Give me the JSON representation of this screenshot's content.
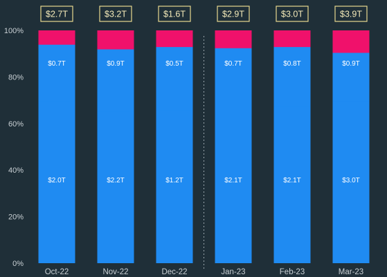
{
  "chart_data": {
    "type": "bar",
    "stacked": true,
    "normalized": true,
    "categories": [
      "Oct-22",
      "Nov-22",
      "Dec-22",
      "Jan-23",
      "Feb-23",
      "Mar-23"
    ],
    "totals": [
      "$2.7T",
      "$3.2T",
      "$1.6T",
      "$2.9T",
      "$3.0T",
      "$3.9T"
    ],
    "series": [
      {
        "color": "#1f8bf2",
        "values": [
          2.0,
          2.2,
          1.2,
          2.1,
          2.1,
          3.0
        ],
        "labels": [
          "$2.0T",
          "$2.2T",
          "$1.2T",
          "$2.1T",
          "$2.1T",
          "$3.0T"
        ]
      },
      {
        "color": "#1f8bf2",
        "values": [
          0.7,
          0.9,
          0.5,
          0.7,
          0.8,
          0.9
        ],
        "labels": [
          "$0.7T",
          "$0.9T",
          "$0.5T",
          "$0.7T",
          "$0.8T",
          "$0.9T"
        ]
      },
      {
        "color": "#f0116b",
        "shares": [
          0.06,
          0.08,
          0.07,
          0.075,
          0.07,
          0.095
        ]
      }
    ],
    "ylim": [
      0,
      100
    ],
    "yticks": [
      "0%",
      "20%",
      "40%",
      "60%",
      "80%",
      "100%"
    ],
    "divider_after_index": 2,
    "grid": false,
    "legend": "none"
  }
}
